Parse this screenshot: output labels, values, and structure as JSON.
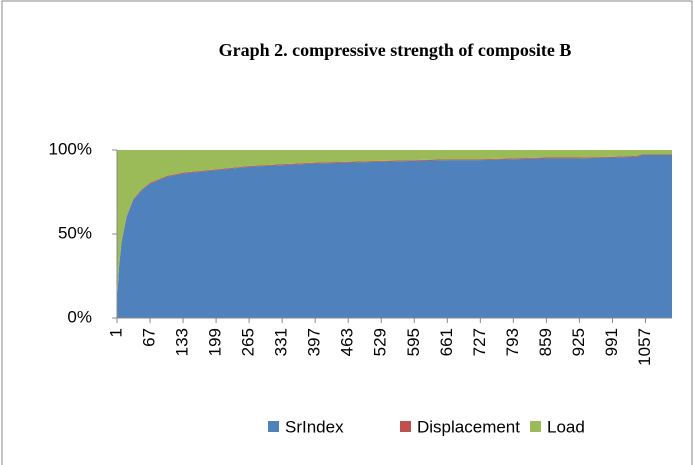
{
  "chart_data": {
    "type": "stacked-area-100",
    "title": "Graph 2. compressive strength of composite B",
    "x": [
      1,
      5,
      10,
      20,
      33,
      50,
      67,
      100,
      133,
      199,
      265,
      331,
      397,
      463,
      529,
      595,
      661,
      727,
      793,
      859,
      925,
      991,
      1040,
      1050,
      1110
    ],
    "series": [
      {
        "name": "SrIndex",
        "color": "#4f81bd",
        "values": [
          10,
          30,
          45,
          60,
          70,
          76,
          80,
          84,
          86,
          88,
          90,
          91,
          92,
          92.5,
          93,
          93.5,
          94,
          94,
          94.5,
          95,
          95,
          95.5,
          96,
          97,
          97
        ]
      },
      {
        "name": "Displacement",
        "color": "#c0504d",
        "values": [
          0.5,
          0.5,
          0.5,
          0.5,
          0.5,
          0.5,
          0.5,
          0.5,
          0.5,
          0.5,
          0.5,
          0.5,
          0.5,
          0.5,
          0.5,
          0.5,
          0.5,
          0.5,
          0.5,
          0.5,
          0.5,
          0.5,
          0.5,
          0.5,
          0.5
        ]
      },
      {
        "name": "Load",
        "color": "#9bbb59",
        "values": [
          89.5,
          69.5,
          54.5,
          39.5,
          29.5,
          23.5,
          19.5,
          15.5,
          13.5,
          11.5,
          9.5,
          8.5,
          7.5,
          7,
          6.5,
          6,
          5.5,
          5.5,
          5,
          4.5,
          4.5,
          4,
          3.5,
          2.5,
          2.5
        ]
      }
    ],
    "xlim": [
      1,
      1110
    ],
    "xticks": [
      1,
      67,
      133,
      199,
      265,
      331,
      397,
      463,
      529,
      595,
      661,
      727,
      793,
      859,
      925,
      991,
      1057
    ],
    "ylim": [
      0,
      100
    ],
    "yticks": [
      {
        "value": 0,
        "label": "0%"
      },
      {
        "value": 50,
        "label": "50%"
      },
      {
        "value": 100,
        "label": "100%"
      }
    ],
    "legend": "bottom"
  }
}
